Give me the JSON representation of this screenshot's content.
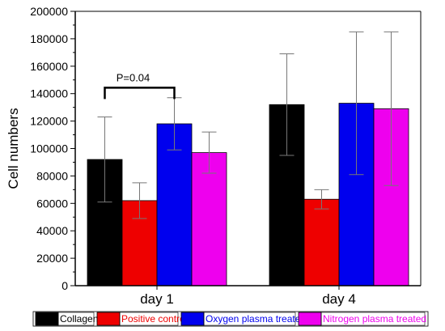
{
  "chart_data": {
    "type": "bar",
    "categories": [
      "day 1",
      "day 4"
    ],
    "ylabel": "Cell numbers",
    "xlabel": "",
    "ylim": [
      0,
      200000
    ],
    "yticks": [
      0,
      20000,
      40000,
      60000,
      80000,
      100000,
      120000,
      140000,
      160000,
      180000,
      200000
    ],
    "series": [
      {
        "name": "Collagen",
        "color": "#000000",
        "text_color": "#000000",
        "values": [
          92000,
          132000
        ],
        "errors": [
          31000,
          37000
        ]
      },
      {
        "name": "Positive control",
        "color": "#ee0000",
        "text_color": "#ee0000",
        "values": [
          62000,
          63000
        ],
        "errors": [
          13000,
          7000
        ]
      },
      {
        "name": "Oxygen plasma treated",
        "color": "#0000ee",
        "text_color": "#0000ee",
        "values": [
          118000,
          133000
        ],
        "errors": [
          19000,
          52000
        ]
      },
      {
        "name": "Nitrogen plasma treated",
        "color": "#ee00ee",
        "text_color": "#ee00ee",
        "values": [
          97000,
          129000
        ],
        "errors": [
          15000,
          56000
        ]
      }
    ],
    "annotations": [
      {
        "text": "P=0.04",
        "category": "day 1",
        "from_series": 0,
        "to_series": 2,
        "y": 152000
      }
    ],
    "legend_position": "bottom",
    "grid": false
  }
}
